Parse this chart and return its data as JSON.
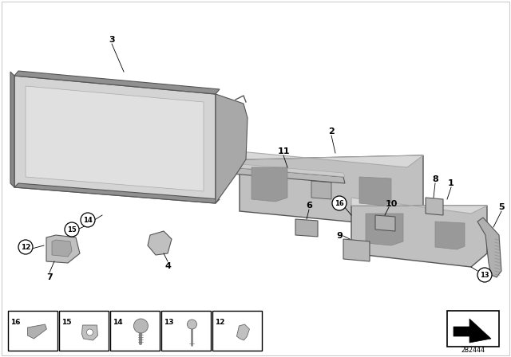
{
  "background_color": "#ffffff",
  "diagram_id": "2B2444",
  "outline_color": "#555555",
  "gray_main": "#c0c0c0",
  "gray_light": "#d8d8d8",
  "gray_dark": "#999999",
  "gray_mid": "#b0b0b0"
}
